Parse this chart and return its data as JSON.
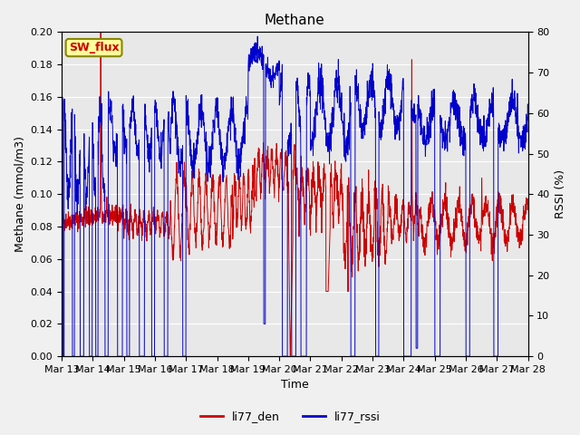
{
  "title": "Methane",
  "xlabel": "Time",
  "ylabel_left": "Methane (mmol/m3)",
  "ylabel_right": "RSSI (%)",
  "ylim_left": [
    0.0,
    0.2
  ],
  "ylim_right": [
    0,
    80
  ],
  "yticks_left": [
    0.0,
    0.02,
    0.04,
    0.06,
    0.08,
    0.1,
    0.12,
    0.14,
    0.16,
    0.18,
    0.2
  ],
  "yticks_right": [
    0,
    10,
    20,
    30,
    40,
    50,
    60,
    70,
    80
  ],
  "xtick_labels": [
    "Mar 13",
    "Mar 14",
    "Mar 15",
    "Mar 16",
    "Mar 17",
    "Mar 18",
    "Mar 19",
    "Mar 20",
    "Mar 21",
    "Mar 22",
    "Mar 23",
    "Mar 24",
    "Mar 25",
    "Mar 26",
    "Mar 27",
    "Mar 28"
  ],
  "color_den": "#cc0000",
  "color_rssi": "#0000cc",
  "legend_labels": [
    "li77_den",
    "li77_rssi"
  ],
  "annotation_text": "SW_flux",
  "annotation_bg": "#ffff99",
  "annotation_border": "#888800",
  "plot_bg": "#e8e8e8",
  "fig_bg": "#f0f0f0",
  "grid_color": "#ffffff",
  "title_fontsize": 11,
  "label_fontsize": 9,
  "tick_fontsize": 8,
  "linewidth_den": 0.7,
  "linewidth_rssi": 0.7
}
